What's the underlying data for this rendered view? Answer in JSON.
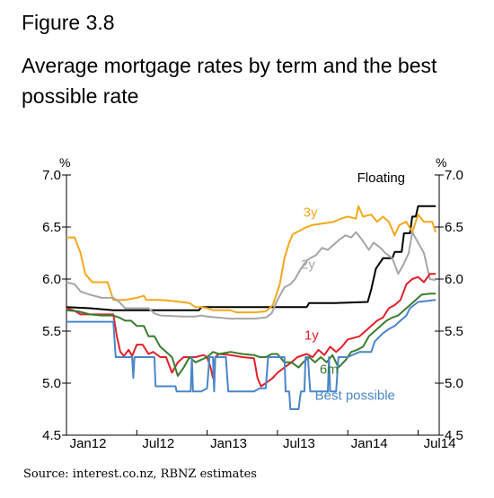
{
  "figure_label": "Figure 3.8",
  "title": "Average mortgage rates by term and the best possible rate",
  "source": "Source: interest.co.nz, RBNZ estimates",
  "chart_data": {
    "type": "line",
    "title": "Average mortgage rates by term and the best possible rate",
    "y_unit_left": "%",
    "y_unit_right": "%",
    "ylim": [
      4.5,
      7.0
    ],
    "yticks": [
      4.5,
      5.0,
      5.5,
      6.0,
      6.5,
      7.0
    ],
    "ytick_labels": [
      "4.5",
      "5.0",
      "5.5",
      "6.0",
      "6.5",
      "7.0"
    ],
    "xlim": [
      0,
      31.8
    ],
    "xticks": [
      0,
      6,
      12,
      18,
      24,
      30
    ],
    "xtick_labels": [
      "Jan12",
      "Jul12",
      "Jan13",
      "Jul13",
      "Jan14",
      "Jul14"
    ],
    "grid": false,
    "legend": "inline labels",
    "series": [
      {
        "name": "Floating",
        "color": "#000000",
        "label_pos": [
          24.8,
          6.93
        ],
        "points": [
          [
            0,
            5.73
          ],
          [
            2,
            5.72
          ],
          [
            4,
            5.7
          ],
          [
            7,
            5.7
          ],
          [
            10,
            5.7
          ],
          [
            11.3,
            5.7
          ],
          [
            11.5,
            5.73
          ],
          [
            16,
            5.73
          ],
          [
            19,
            5.73
          ],
          [
            20.5,
            5.73
          ],
          [
            20.7,
            5.77
          ],
          [
            23,
            5.77
          ],
          [
            25.7,
            5.78
          ],
          [
            26,
            5.9
          ],
          [
            26.4,
            6.1
          ],
          [
            27,
            6.2
          ],
          [
            27.8,
            6.2
          ],
          [
            28,
            6.26
          ],
          [
            28.6,
            6.26
          ],
          [
            28.8,
            6.44
          ],
          [
            29.3,
            6.44
          ],
          [
            29.5,
            6.6
          ],
          [
            29.8,
            6.6
          ],
          [
            30,
            6.7
          ],
          [
            31.5,
            6.7
          ]
        ]
      },
      {
        "name": "3y",
        "color": "#F5A81C",
        "label_pos": [
          20.2,
          6.6
        ],
        "points": [
          [
            0,
            6.4
          ],
          [
            0.7,
            6.4
          ],
          [
            1.2,
            6.25
          ],
          [
            1.6,
            6.05
          ],
          [
            2.2,
            5.97
          ],
          [
            3,
            5.97
          ],
          [
            3.5,
            5.97
          ],
          [
            4,
            5.8
          ],
          [
            5,
            5.8
          ],
          [
            6,
            5.82
          ],
          [
            6.6,
            5.84
          ],
          [
            6.8,
            5.8
          ],
          [
            8,
            5.8
          ],
          [
            9,
            5.79
          ],
          [
            10.5,
            5.77
          ],
          [
            11,
            5.73
          ],
          [
            11.5,
            5.73
          ],
          [
            12,
            5.72
          ],
          [
            12.5,
            5.7
          ],
          [
            13,
            5.7
          ],
          [
            14,
            5.7
          ],
          [
            14.5,
            5.68
          ],
          [
            16,
            5.68
          ],
          [
            17,
            5.69
          ],
          [
            17.6,
            5.75
          ],
          [
            18.2,
            5.95
          ],
          [
            18.6,
            6.2
          ],
          [
            19,
            6.35
          ],
          [
            19.3,
            6.43
          ],
          [
            20.5,
            6.5
          ],
          [
            21,
            6.52
          ],
          [
            22.8,
            6.55
          ],
          [
            23.4,
            6.58
          ],
          [
            24,
            6.6
          ],
          [
            24.7,
            6.58
          ],
          [
            24.9,
            6.7
          ],
          [
            25.3,
            6.6
          ],
          [
            26,
            6.62
          ],
          [
            26.5,
            6.55
          ],
          [
            27,
            6.6
          ],
          [
            27.5,
            6.55
          ],
          [
            28,
            6.42
          ],
          [
            28.4,
            6.52
          ],
          [
            29,
            6.55
          ],
          [
            29.5,
            6.45
          ],
          [
            30,
            6.62
          ],
          [
            30.5,
            6.55
          ],
          [
            31.2,
            6.55
          ],
          [
            31.5,
            6.45
          ]
        ]
      },
      {
        "name": "2y",
        "color": "#A6A6A6",
        "label_pos": [
          20,
          6.1
        ],
        "points": [
          [
            0,
            5.97
          ],
          [
            0.7,
            5.95
          ],
          [
            1.2,
            5.88
          ],
          [
            2,
            5.85
          ],
          [
            3,
            5.82
          ],
          [
            4,
            5.82
          ],
          [
            4.5,
            5.78
          ],
          [
            5,
            5.72
          ],
          [
            6,
            5.72
          ],
          [
            7,
            5.72
          ],
          [
            7.5,
            5.67
          ],
          [
            8,
            5.65
          ],
          [
            10,
            5.64
          ],
          [
            11,
            5.64
          ],
          [
            11.5,
            5.65
          ],
          [
            12,
            5.64
          ],
          [
            14,
            5.62
          ],
          [
            16,
            5.62
          ],
          [
            17,
            5.63
          ],
          [
            17.5,
            5.67
          ],
          [
            18,
            5.8
          ],
          [
            18.6,
            5.92
          ],
          [
            19.1,
            5.95
          ],
          [
            19.5,
            6.0
          ],
          [
            20,
            6.1
          ],
          [
            20.5,
            6.18
          ],
          [
            20.8,
            6.2
          ],
          [
            21.3,
            6.23
          ],
          [
            21.8,
            6.3
          ],
          [
            22.3,
            6.28
          ],
          [
            22.8,
            6.33
          ],
          [
            23.3,
            6.38
          ],
          [
            23.8,
            6.42
          ],
          [
            24.3,
            6.4
          ],
          [
            24.7,
            6.45
          ],
          [
            25.2,
            6.38
          ],
          [
            25.8,
            6.28
          ],
          [
            26.2,
            6.35
          ],
          [
            26.8,
            6.3
          ],
          [
            27.2,
            6.25
          ],
          [
            27.8,
            6.2
          ],
          [
            28.3,
            6.05
          ],
          [
            28.8,
            6.15
          ],
          [
            29.2,
            6.25
          ],
          [
            29.5,
            6.45
          ],
          [
            30,
            6.35
          ],
          [
            30.5,
            6.25
          ],
          [
            31,
            6.0
          ],
          [
            31.5,
            5.99
          ]
        ]
      },
      {
        "name": "1y",
        "color": "#E0202A",
        "label_pos": [
          20.3,
          5.42
        ],
        "points": [
          [
            0,
            5.72
          ],
          [
            0.6,
            5.7
          ],
          [
            1.2,
            5.66
          ],
          [
            3,
            5.66
          ],
          [
            4,
            5.66
          ],
          [
            4.3,
            5.45
          ],
          [
            4.6,
            5.3
          ],
          [
            4.9,
            5.26
          ],
          [
            5.3,
            5.32
          ],
          [
            5.6,
            5.26
          ],
          [
            6,
            5.37
          ],
          [
            6.5,
            5.37
          ],
          [
            7,
            5.28
          ],
          [
            7.4,
            5.3
          ],
          [
            8,
            5.25
          ],
          [
            8.5,
            5.25
          ],
          [
            9,
            5.1
          ],
          [
            9.5,
            5.2
          ],
          [
            10,
            5.25
          ],
          [
            10.5,
            5.25
          ],
          [
            11,
            5.25
          ],
          [
            11.7,
            5.27
          ],
          [
            12,
            5.25
          ],
          [
            12.3,
            5.15
          ],
          [
            12.5,
            5.05
          ],
          [
            12.7,
            5.25
          ],
          [
            13,
            5.28
          ],
          [
            14,
            5.27
          ],
          [
            15,
            5.25
          ],
          [
            16,
            5.24
          ],
          [
            16.3,
            5.05
          ],
          [
            16.6,
            4.97
          ],
          [
            17,
            5.0
          ],
          [
            17.6,
            5.05
          ],
          [
            18,
            5.1
          ],
          [
            18.6,
            5.15
          ],
          [
            19.2,
            5.2
          ],
          [
            19.7,
            5.25
          ],
          [
            20.5,
            5.28
          ],
          [
            21,
            5.25
          ],
          [
            21.5,
            5.32
          ],
          [
            22,
            5.27
          ],
          [
            22.5,
            5.35
          ],
          [
            23,
            5.3
          ],
          [
            23.5,
            5.35
          ],
          [
            24,
            5.42
          ],
          [
            25,
            5.45
          ],
          [
            25.5,
            5.5
          ],
          [
            26,
            5.55
          ],
          [
            26.5,
            5.6
          ],
          [
            27,
            5.63
          ],
          [
            27.5,
            5.72
          ],
          [
            28,
            5.75
          ],
          [
            28.5,
            5.8
          ],
          [
            29,
            5.95
          ],
          [
            29.5,
            6.0
          ],
          [
            30,
            6.02
          ],
          [
            30.5,
            5.97
          ],
          [
            31,
            6.05
          ],
          [
            31.5,
            6.05
          ]
        ]
      },
      {
        "name": "6m",
        "color": "#3A7D2E",
        "label_pos": [
          21.6,
          5.09
        ],
        "points": [
          [
            0,
            5.7
          ],
          [
            1,
            5.69
          ],
          [
            2,
            5.66
          ],
          [
            3,
            5.65
          ],
          [
            4,
            5.65
          ],
          [
            4.5,
            5.63
          ],
          [
            5,
            5.6
          ],
          [
            5.5,
            5.6
          ],
          [
            6,
            5.55
          ],
          [
            6.6,
            5.55
          ],
          [
            7,
            5.45
          ],
          [
            7.5,
            5.45
          ],
          [
            8,
            5.35
          ],
          [
            9,
            5.25
          ],
          [
            9.5,
            5.07
          ],
          [
            10,
            5.15
          ],
          [
            10.5,
            5.25
          ],
          [
            11,
            5.2
          ],
          [
            12,
            5.25
          ],
          [
            12.5,
            5.3
          ],
          [
            13,
            5.28
          ],
          [
            14,
            5.3
          ],
          [
            15,
            5.28
          ],
          [
            16,
            5.27
          ],
          [
            16.5,
            5.25
          ],
          [
            17,
            5.25
          ],
          [
            17.5,
            5.28
          ],
          [
            18,
            5.28
          ],
          [
            18.6,
            5.2
          ],
          [
            19.2,
            5.2
          ],
          [
            19.8,
            5.15
          ],
          [
            20.2,
            5.2
          ],
          [
            20.7,
            5.25
          ],
          [
            21.2,
            5.2
          ],
          [
            21.7,
            5.25
          ],
          [
            22.2,
            5.2
          ],
          [
            22.7,
            5.27
          ],
          [
            23.2,
            5.15
          ],
          [
            23.8,
            5.22
          ],
          [
            24.3,
            5.3
          ],
          [
            24.8,
            5.32
          ],
          [
            25.3,
            5.35
          ],
          [
            25.8,
            5.45
          ],
          [
            26.3,
            5.5
          ],
          [
            26.8,
            5.55
          ],
          [
            27.3,
            5.6
          ],
          [
            27.8,
            5.63
          ],
          [
            28.3,
            5.65
          ],
          [
            28.8,
            5.7
          ],
          [
            29.3,
            5.75
          ],
          [
            29.8,
            5.8
          ],
          [
            30.3,
            5.85
          ],
          [
            31,
            5.86
          ],
          [
            31.5,
            5.86
          ]
        ]
      },
      {
        "name": "Best possible",
        "color": "#4A86C8",
        "label_pos": [
          21.2,
          4.84
        ],
        "points": [
          [
            0,
            5.59
          ],
          [
            1,
            5.59
          ],
          [
            2,
            5.59
          ],
          [
            3,
            5.59
          ],
          [
            4,
            5.59
          ],
          [
            4.2,
            5.25
          ],
          [
            5,
            5.25
          ],
          [
            5.6,
            5.25
          ],
          [
            5.7,
            5.05
          ],
          [
            5.8,
            5.25
          ],
          [
            7,
            5.25
          ],
          [
            7.5,
            5.25
          ],
          [
            7.6,
            4.97
          ],
          [
            9,
            4.97
          ],
          [
            9.3,
            4.97
          ],
          [
            9.4,
            4.92
          ],
          [
            10,
            4.92
          ],
          [
            10.6,
            4.92
          ],
          [
            10.7,
            5.25
          ],
          [
            10.8,
            4.92
          ],
          [
            11.5,
            4.92
          ],
          [
            12,
            4.95
          ],
          [
            12.2,
            5.25
          ],
          [
            12.5,
            5.25
          ],
          [
            12.6,
            4.92
          ],
          [
            12.7,
            5.25
          ],
          [
            13.6,
            5.25
          ],
          [
            13.8,
            4.92
          ],
          [
            15,
            4.92
          ],
          [
            16,
            4.92
          ],
          [
            16.5,
            4.95
          ],
          [
            17,
            4.95
          ],
          [
            17.2,
            5.25
          ],
          [
            18.6,
            5.25
          ],
          [
            18.7,
            4.92
          ],
          [
            19,
            4.92
          ],
          [
            19.1,
            4.75
          ],
          [
            19.8,
            4.75
          ],
          [
            20,
            4.92
          ],
          [
            20.3,
            4.92
          ],
          [
            20.4,
            5.25
          ],
          [
            20.6,
            5.25
          ],
          [
            20.8,
            4.92
          ],
          [
            22.3,
            4.92
          ],
          [
            22.4,
            5.25
          ],
          [
            22.5,
            4.92
          ],
          [
            23,
            4.92
          ],
          [
            23.2,
            5.25
          ],
          [
            23.4,
            5.25
          ],
          [
            24,
            5.25
          ],
          [
            25,
            5.3
          ],
          [
            26,
            5.3
          ],
          [
            26.3,
            5.4
          ],
          [
            27,
            5.48
          ],
          [
            27.5,
            5.52
          ],
          [
            28,
            5.55
          ],
          [
            28.5,
            5.6
          ],
          [
            29,
            5.65
          ],
          [
            29.3,
            5.72
          ],
          [
            30,
            5.78
          ],
          [
            31.5,
            5.8
          ]
        ]
      }
    ]
  }
}
